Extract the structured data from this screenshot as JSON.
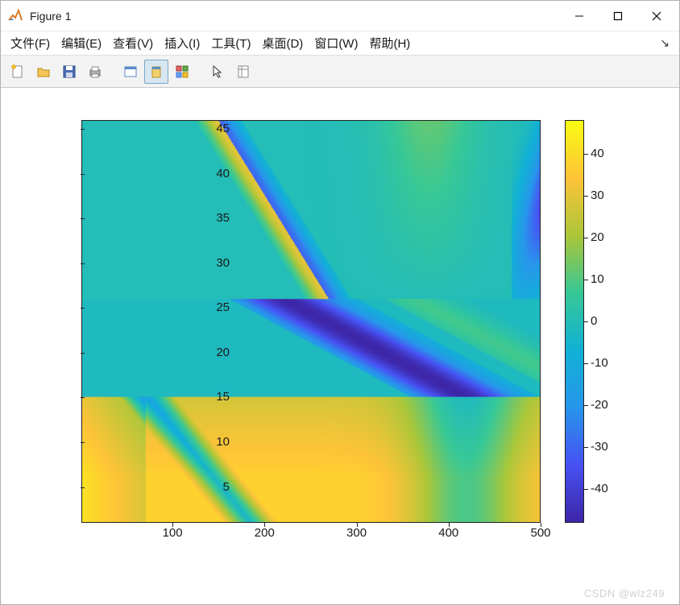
{
  "window": {
    "title": "Figure 1"
  },
  "menus": [
    "文件(F)",
    "编辑(E)",
    "查看(V)",
    "插入(I)",
    "工具(T)",
    "桌面(D)",
    "窗口(W)",
    "帮助(H)"
  ],
  "toolbar": [
    {
      "name": "new-icon"
    },
    {
      "name": "open-icon"
    },
    {
      "name": "save-icon"
    },
    {
      "name": "print-icon"
    },
    {
      "sep": true
    },
    {
      "name": "link-icon"
    },
    {
      "name": "rotate3d-icon",
      "active": true
    },
    {
      "name": "datacursor-icon"
    },
    {
      "sep": true
    },
    {
      "name": "pointer-icon"
    },
    {
      "name": "insert-icon"
    }
  ],
  "chart": {
    "type": "heatmap",
    "xlim": [
      1,
      500
    ],
    "ylim": [
      1,
      46
    ],
    "xticks": [
      100,
      200,
      300,
      400,
      500
    ],
    "yticks": [
      5,
      10,
      15,
      20,
      25,
      30,
      35,
      40,
      45
    ],
    "colorbar": {
      "vmin": -48,
      "vmax": 48,
      "ticks": [
        -40,
        -30,
        -20,
        -10,
        0,
        10,
        20,
        30,
        40
      ]
    },
    "colormap": "parula",
    "parula_stops": [
      [
        0.2422,
        0.1504,
        0.6603
      ],
      [
        0.281,
        0.3228,
        0.9578
      ],
      [
        0.154,
        0.5902,
        0.9218
      ],
      [
        0.0689,
        0.6948,
        0.8394
      ],
      [
        0.2161,
        0.7843,
        0.5923
      ],
      [
        0.672,
        0.7793,
        0.2227
      ],
      [
        0.997,
        0.7659,
        0.2199
      ],
      [
        0.9769,
        0.9839,
        0.0805
      ]
    ],
    "background_color": "#ffffff",
    "axis_color": "#222222",
    "tick_fontsize": 15
  },
  "watermark": "CSDN @wlz249"
}
